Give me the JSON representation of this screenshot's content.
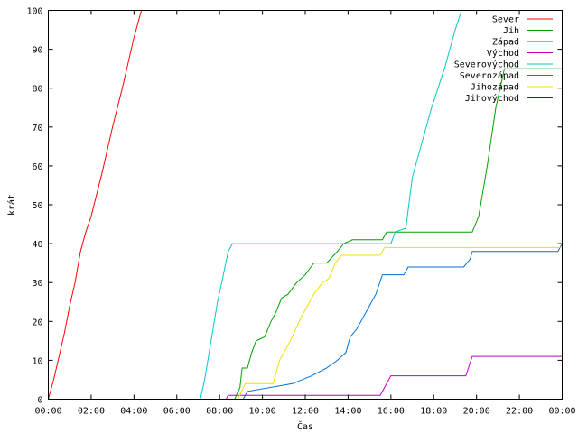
{
  "chart_data": {
    "type": "line",
    "title": "",
    "xlabel": "Čas",
    "ylabel": "krát",
    "xlim_hours": [
      0,
      24
    ],
    "ylim": [
      0,
      100
    ],
    "xticks": [
      "00:00",
      "02:00",
      "04:00",
      "06:00",
      "08:00",
      "10:00",
      "12:00",
      "14:00",
      "16:00",
      "18:00",
      "20:00",
      "22:00",
      "00:00"
    ],
    "yticks": [
      0,
      10,
      20,
      30,
      40,
      50,
      60,
      70,
      80,
      90,
      100
    ],
    "grid": false,
    "legend_position": "top-right",
    "series": [
      {
        "name": "Sever",
        "color": "#ff0000",
        "points": [
          [
            0.0,
            0
          ],
          [
            0.25,
            5
          ],
          [
            0.5,
            11
          ],
          [
            0.75,
            17
          ],
          [
            1.0,
            24
          ],
          [
            1.25,
            30
          ],
          [
            1.5,
            38
          ],
          [
            1.75,
            43
          ],
          [
            2.0,
            47
          ],
          [
            2.5,
            58
          ],
          [
            3.0,
            70
          ],
          [
            3.5,
            81
          ],
          [
            4.0,
            93
          ],
          [
            4.35,
            100
          ]
        ]
      },
      {
        "name": "Jih",
        "color": "#00a000",
        "points": [
          [
            0.0,
            0
          ],
          [
            8.7,
            0
          ],
          [
            8.95,
            3
          ],
          [
            9.05,
            8
          ],
          [
            9.3,
            8
          ],
          [
            9.5,
            12
          ],
          [
            9.7,
            15
          ],
          [
            10.1,
            16
          ],
          [
            10.4,
            20
          ],
          [
            10.6,
            22
          ],
          [
            10.9,
            26
          ],
          [
            11.2,
            27
          ],
          [
            11.6,
            30
          ],
          [
            12.0,
            32
          ],
          [
            12.4,
            35
          ],
          [
            13.0,
            35
          ],
          [
            13.5,
            38
          ],
          [
            13.8,
            40
          ],
          [
            14.2,
            41
          ],
          [
            15.6,
            41
          ],
          [
            15.8,
            43
          ],
          [
            19.8,
            43
          ],
          [
            20.1,
            47
          ],
          [
            20.5,
            60
          ],
          [
            20.9,
            75
          ],
          [
            21.3,
            85
          ],
          [
            24.0,
            85
          ]
        ]
      },
      {
        "name": "Západ",
        "color": "#0070d0",
        "points": [
          [
            0.0,
            0
          ],
          [
            9.1,
            0
          ],
          [
            9.3,
            2
          ],
          [
            11.4,
            4
          ],
          [
            12.3,
            6
          ],
          [
            13.0,
            8
          ],
          [
            13.5,
            10
          ],
          [
            13.9,
            12
          ],
          [
            14.1,
            16
          ],
          [
            14.4,
            18
          ],
          [
            14.7,
            21
          ],
          [
            15.0,
            24
          ],
          [
            15.3,
            27
          ],
          [
            15.6,
            32
          ],
          [
            16.6,
            32
          ],
          [
            16.8,
            34
          ],
          [
            19.4,
            34
          ],
          [
            19.7,
            36
          ],
          [
            19.8,
            38
          ],
          [
            23.8,
            38
          ],
          [
            24.0,
            40
          ]
        ]
      },
      {
        "name": "Východ",
        "color": "#c000c0",
        "points": [
          [
            0.0,
            0
          ],
          [
            8.3,
            0
          ],
          [
            8.4,
            1
          ],
          [
            15.5,
            1
          ],
          [
            15.8,
            4
          ],
          [
            16.0,
            6
          ],
          [
            19.5,
            6
          ],
          [
            19.8,
            11
          ],
          [
            24.0,
            11
          ]
        ]
      },
      {
        "name": "Severovýchod",
        "color": "#00c8c8",
        "points": [
          [
            0.0,
            0
          ],
          [
            7.1,
            0
          ],
          [
            7.3,
            5
          ],
          [
            7.6,
            15
          ],
          [
            7.9,
            25
          ],
          [
            8.1,
            30
          ],
          [
            8.4,
            38
          ],
          [
            8.6,
            40
          ],
          [
            16.0,
            40
          ],
          [
            16.2,
            43
          ],
          [
            16.7,
            44
          ],
          [
            17.0,
            57
          ],
          [
            17.4,
            65
          ],
          [
            17.9,
            75
          ],
          [
            18.5,
            85
          ],
          [
            19.0,
            95
          ],
          [
            19.3,
            100
          ]
        ]
      },
      {
        "name": "Severozápad",
        "color": "#00a000",
        "points": []
      },
      {
        "name": "Jihozápad",
        "color": "#f0e000",
        "points": [
          [
            0.0,
            0
          ],
          [
            8.85,
            0
          ],
          [
            9.2,
            4
          ],
          [
            10.5,
            4
          ],
          [
            10.8,
            10
          ],
          [
            11.3,
            15
          ],
          [
            11.8,
            21
          ],
          [
            12.4,
            27
          ],
          [
            12.8,
            30
          ],
          [
            13.1,
            31
          ],
          [
            13.4,
            35
          ],
          [
            13.7,
            37
          ],
          [
            15.5,
            37
          ],
          [
            15.7,
            39
          ],
          [
            24.0,
            39
          ]
        ]
      },
      {
        "name": "Jihovýchod",
        "color": "#2020a0",
        "points": []
      }
    ]
  }
}
